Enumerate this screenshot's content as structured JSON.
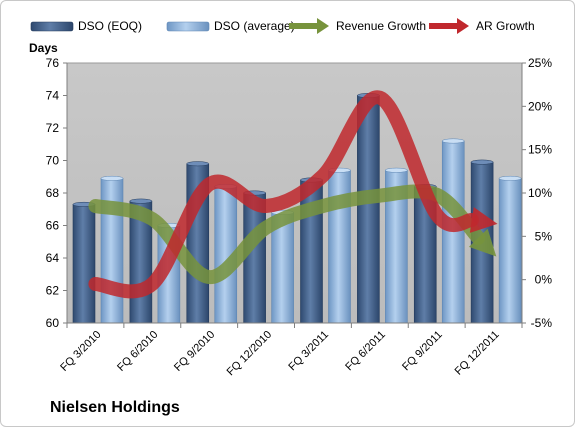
{
  "chart_data": {
    "type": "bar",
    "company": "Nielsen Holdings",
    "left_axis_title": "Days",
    "categories": [
      "FQ 3/2010",
      "FQ 6/2010",
      "FQ 9/2010",
      "FQ 12/2010",
      "FQ 3/2011",
      "FQ 6/2011",
      "FQ 9/2011",
      "FQ 12/2011"
    ],
    "series": [
      {
        "name": "DSO (EOQ)",
        "axis": "left",
        "kind": "bar",
        "color": "#4a6791",
        "values": [
          67.3,
          67.5,
          69.8,
          68.0,
          68.8,
          74.0,
          68.4,
          69.9
        ]
      },
      {
        "name": "DSO (average)",
        "axis": "left",
        "kind": "bar",
        "color": "#8fb3d9",
        "values": [
          68.9,
          66.0,
          68.4,
          66.8,
          69.4,
          69.4,
          71.2,
          68.9
        ]
      },
      {
        "name": "Revenue Growth",
        "axis": "right",
        "kind": "line-arrow",
        "color": "#77933c",
        "values": [
          8.5,
          7.0,
          0.3,
          6.0,
          8.5,
          9.7,
          9.8,
          3.0
        ]
      },
      {
        "name": "AR Growth",
        "axis": "right",
        "kind": "line-arrow",
        "color": "#c0282d",
        "values": [
          -0.5,
          -0.5,
          11.0,
          8.5,
          12.0,
          21.0,
          7.5,
          6.5
        ]
      }
    ],
    "y_left": {
      "min": 60,
      "max": 76,
      "step": 2,
      "ticks": [
        "60",
        "62",
        "64",
        "66",
        "68",
        "70",
        "72",
        "74",
        "76"
      ]
    },
    "y_right": {
      "min": -5,
      "max": 25,
      "step": 5,
      "ticks": [
        "-5%",
        "0%",
        "5%",
        "10%",
        "15%",
        "20%",
        "25%"
      ]
    },
    "grid": false,
    "legend_position": "top",
    "plot_background": "#c0c0c0"
  }
}
